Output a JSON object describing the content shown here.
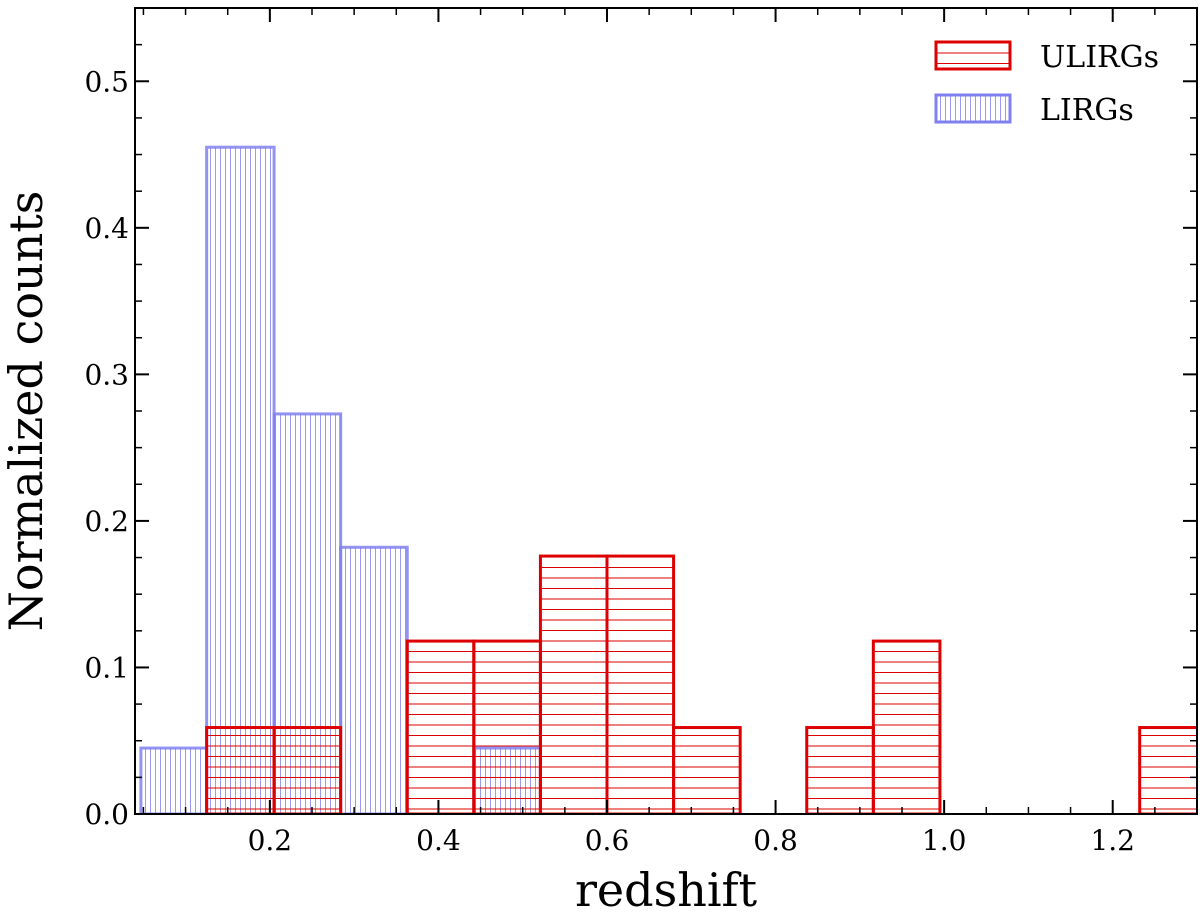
{
  "chart_data": {
    "type": "bar",
    "xlabel": "redshift",
    "ylabel": "Normalized counts",
    "xlim": [
      0.04,
      1.3
    ],
    "ylim": [
      0.0,
      0.55
    ],
    "xticks": [
      "0.2",
      "0.4",
      "0.6",
      "0.8",
      "1.0",
      "1.2"
    ],
    "yticks": [
      "0.0",
      "0.1",
      "0.2",
      "0.3",
      "0.4",
      "0.5"
    ],
    "grid": false,
    "legend": "top-right",
    "series": [
      {
        "name": "ULIRGs",
        "color": "#dd0000",
        "hatch": "horizontal",
        "bins": [
          {
            "x0": 0.125,
            "x1": 0.205,
            "value": 0.059
          },
          {
            "x0": 0.205,
            "x1": 0.284,
            "value": 0.059
          },
          {
            "x0": 0.363,
            "x1": 0.442,
            "value": 0.118
          },
          {
            "x0": 0.442,
            "x1": 0.521,
            "value": 0.118
          },
          {
            "x0": 0.521,
            "x1": 0.6,
            "value": 0.176
          },
          {
            "x0": 0.6,
            "x1": 0.679,
            "value": 0.176
          },
          {
            "x0": 0.679,
            "x1": 0.758,
            "value": 0.059
          },
          {
            "x0": 0.837,
            "x1": 0.916,
            "value": 0.059
          },
          {
            "x0": 0.916,
            "x1": 0.995,
            "value": 0.118
          },
          {
            "x0": 1.232,
            "x1": 1.311,
            "value": 0.059
          }
        ]
      },
      {
        "name": "LIRGs",
        "color": "#8080f0",
        "hatch": "vertical",
        "bins": [
          {
            "x0": 0.047,
            "x1": 0.125,
            "value": 0.045
          },
          {
            "x0": 0.125,
            "x1": 0.205,
            "value": 0.455
          },
          {
            "x0": 0.205,
            "x1": 0.284,
            "value": 0.273
          },
          {
            "x0": 0.284,
            "x1": 0.363,
            "value": 0.182
          },
          {
            "x0": 0.442,
            "x1": 0.521,
            "value": 0.045
          }
        ]
      }
    ]
  }
}
